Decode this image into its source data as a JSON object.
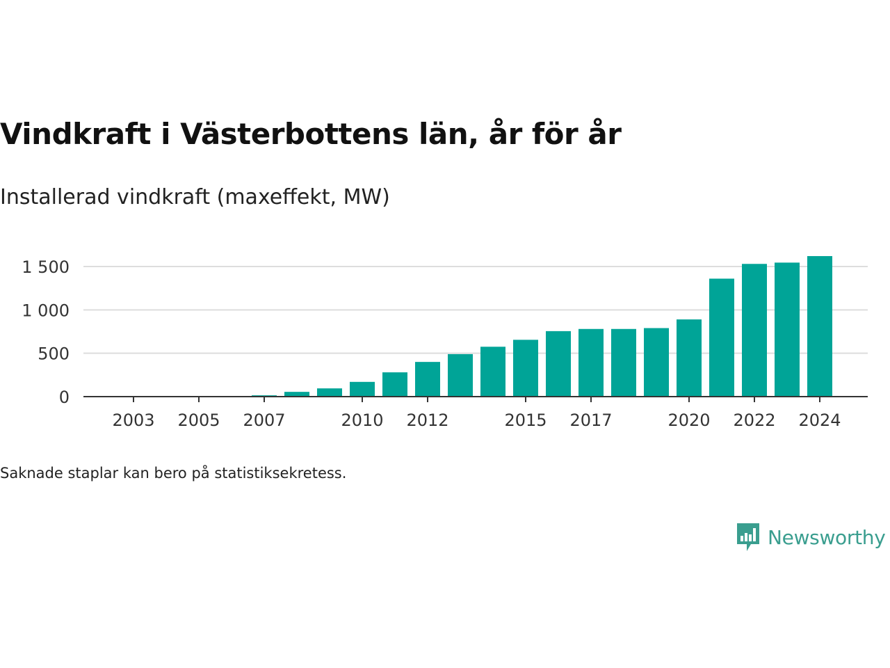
{
  "title": "Vindkraft i Västerbottens län, år för år",
  "subtitle": "Installerad vindkraft (maxeffekt, MW)",
  "footnote": "Saknade staplar kan bero på statistiksekretess.",
  "brand": {
    "name": "Newsworthy",
    "icon": "newsworthy-logo-icon",
    "color": "#3a9e8f"
  },
  "colors": {
    "bar": "#00a497",
    "grid": "#dddddd",
    "axis": "#333333"
  },
  "chart_data": {
    "type": "bar",
    "title": "Vindkraft i Västerbottens län, år för år",
    "subtitle": "Installerad vindkraft (maxeffekt, MW)",
    "xlabel": "",
    "ylabel": "",
    "categories": [
      "2003",
      "2004",
      "2005",
      "2006",
      "2007",
      "2008",
      "2009",
      "2010",
      "2011",
      "2012",
      "2013",
      "2014",
      "2015",
      "2016",
      "2017",
      "2018",
      "2019",
      "2020",
      "2021",
      "2022",
      "2023",
      "2024"
    ],
    "values": [
      0,
      0,
      0,
      0,
      15,
      55,
      95,
      170,
      280,
      400,
      490,
      575,
      655,
      755,
      780,
      780,
      790,
      890,
      1360,
      1530,
      1545,
      1620
    ],
    "x_tick_labels": [
      "2003",
      "2005",
      "2007",
      "2010",
      "2012",
      "2015",
      "2017",
      "2020",
      "2022",
      "2024"
    ],
    "y_ticks": [
      0,
      500,
      1000,
      1500
    ],
    "y_tick_labels": [
      "0",
      "500",
      "1 000",
      "1 500"
    ],
    "ylim": [
      0,
      1650
    ],
    "grid": true,
    "legend": "none"
  }
}
